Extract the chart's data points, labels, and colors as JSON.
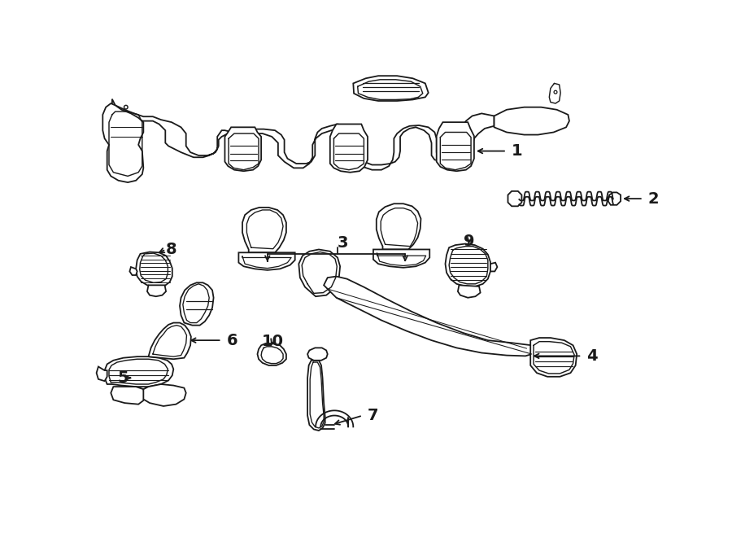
{
  "background_color": "#ffffff",
  "line_color": "#1a1a1a",
  "lw": 1.3,
  "fig_w": 9.0,
  "fig_h": 6.61,
  "dpi": 100
}
